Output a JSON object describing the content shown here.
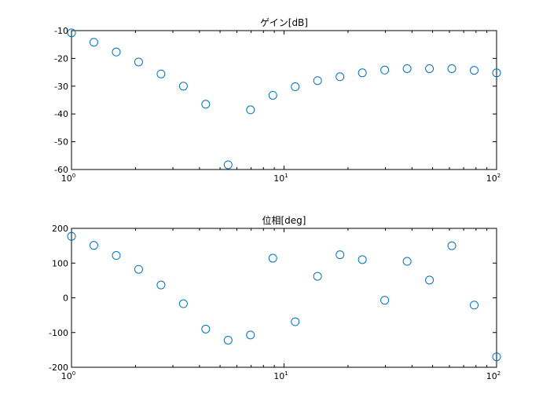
{
  "chart_data": [
    {
      "type": "scatter",
      "title": "ゲイン[dB]",
      "xlabel": "",
      "ylabel": "",
      "xscale": "log",
      "xlim": [
        1,
        100
      ],
      "ylim": [
        -60,
        -10
      ],
      "yticks": [
        -60,
        -50,
        -40,
        -30,
        -20,
        -10
      ],
      "xticks": [
        {
          "base": "10",
          "exp": "0"
        },
        {
          "base": "10",
          "exp": "1"
        },
        {
          "base": "10",
          "exp": "2"
        }
      ],
      "marker": "circle",
      "color": "#0072BD",
      "grid": false,
      "x": [
        1.0,
        1.274,
        1.624,
        2.069,
        2.637,
        3.36,
        4.281,
        5.456,
        6.952,
        8.859,
        11.29,
        14.38,
        18.33,
        23.36,
        29.76,
        37.93,
        48.33,
        61.58,
        78.48,
        100.0
      ],
      "y": [
        -10.8,
        -14.2,
        -17.7,
        -21.3,
        -25.6,
        -30.0,
        -36.5,
        -58.3,
        -38.5,
        -33.3,
        -30.2,
        -28.0,
        -26.6,
        -25.2,
        -24.2,
        -23.7,
        -23.7,
        -23.7,
        -24.3,
        -25.2
      ]
    },
    {
      "type": "scatter",
      "title": "位相[deg]",
      "xlabel": "",
      "ylabel": "",
      "xscale": "log",
      "xlim": [
        1,
        100
      ],
      "ylim": [
        -200,
        200
      ],
      "yticks": [
        -200,
        -100,
        0,
        100,
        200
      ],
      "xticks": [
        {
          "base": "10",
          "exp": "0"
        },
        {
          "base": "10",
          "exp": "1"
        },
        {
          "base": "10",
          "exp": "2"
        }
      ],
      "marker": "circle",
      "color": "#0072BD",
      "grid": false,
      "x": [
        1.0,
        1.274,
        1.624,
        2.069,
        2.637,
        3.36,
        4.281,
        5.456,
        6.952,
        8.859,
        11.29,
        14.38,
        18.33,
        23.36,
        29.76,
        37.93,
        48.33,
        61.58,
        78.48,
        100.0
      ],
      "y": [
        177,
        151,
        122,
        82,
        37,
        -17,
        -90,
        -122,
        -107,
        114,
        -69,
        62,
        124,
        110,
        -7,
        105,
        51,
        150,
        -21,
        -170
      ]
    }
  ]
}
